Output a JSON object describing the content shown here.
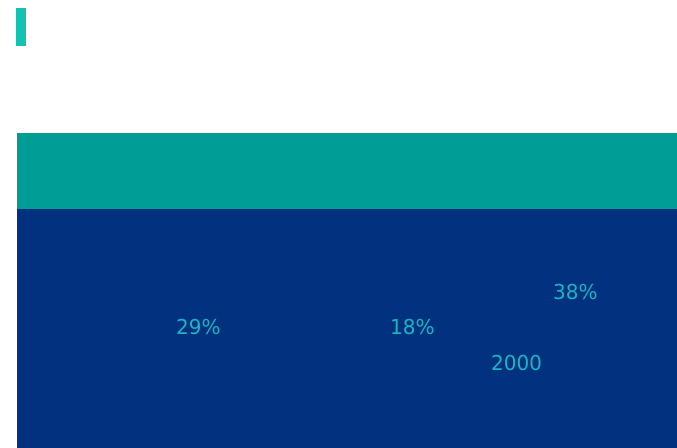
{
  "colors": {
    "accent": "#14c2b4",
    "teal_band": "#009d97",
    "navy_panel": "#02327f",
    "stat_text": "#1bb3c0"
  },
  "stats": [
    "29%",
    "18%",
    "38%",
    "2000"
  ]
}
